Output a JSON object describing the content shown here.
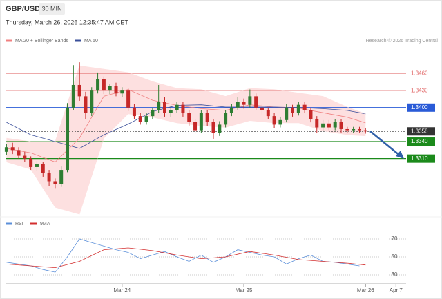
{
  "chart_data": {
    "type": "candlestick",
    "title": "GBP/USD",
    "interval": "30 MIN",
    "subtitle": "Thursday, March 26, 2026 12:35:47 AM CET",
    "credit": "Research © 2026 Trading Central",
    "up_color": "#2e7d32",
    "down_color": "#c62828",
    "xlim": [
      -0.5,
      71
    ],
    "xticks": [
      {
        "value": 19,
        "label": "Mar 24"
      },
      {
        "value": 39,
        "label": "Mar 25"
      },
      {
        "value": 59,
        "label": "Mar 26"
      },
      {
        "value": 64,
        "label": "Apr 7"
      }
    ],
    "ylim": [
      1.3206,
      1.3535
    ],
    "open": [
      1.3322,
      1.333,
      1.3325,
      1.3315,
      1.331,
      1.3295,
      1.33,
      1.3285,
      1.327,
      1.3265,
      1.329,
      1.34,
      1.344,
      1.342,
      1.339,
      1.343,
      1.345,
      1.343,
      1.3438,
      1.3425,
      1.343,
      1.34,
      1.3385,
      1.3375,
      1.3385,
      1.3395,
      1.341,
      1.339,
      1.3395,
      1.3405,
      1.339,
      1.3375,
      1.336,
      1.339,
      1.3375,
      1.3355,
      1.337,
      1.339,
      1.34,
      1.341,
      1.3405,
      1.342,
      1.34,
      1.3395,
      1.3385,
      1.337,
      1.3378,
      1.34,
      1.339,
      1.3405,
      1.3395,
      1.338,
      1.3365,
      1.3372,
      1.3365,
      1.3375,
      1.3362,
      1.336,
      1.3362,
      1.336
    ],
    "high": [
      1.3336,
      1.3338,
      1.333,
      1.3322,
      1.3314,
      1.3306,
      1.3304,
      1.329,
      1.3275,
      1.3296,
      1.3408,
      1.3475,
      1.348,
      1.3428,
      1.3436,
      1.3462,
      1.3455,
      1.3442,
      1.3444,
      1.3436,
      1.3434,
      1.3406,
      1.339,
      1.339,
      1.34,
      1.344,
      1.3418,
      1.3402,
      1.341,
      1.341,
      1.3396,
      1.338,
      1.3396,
      1.3395,
      1.338,
      1.3376,
      1.3396,
      1.3406,
      1.3418,
      1.3416,
      1.3432,
      1.3425,
      1.3406,
      1.34,
      1.339,
      1.3384,
      1.3406,
      1.3405,
      1.341,
      1.341,
      1.34,
      1.3385,
      1.3378,
      1.3378,
      1.338,
      1.338,
      1.3366,
      1.3366,
      1.3366,
      1.3364
    ],
    "low": [
      1.3316,
      1.3318,
      1.331,
      1.3304,
      1.329,
      1.3288,
      1.3278,
      1.3262,
      1.3258,
      1.326,
      1.3286,
      1.3395,
      1.3412,
      1.338,
      1.3385,
      1.3425,
      1.3424,
      1.3424,
      1.342,
      1.3418,
      1.3394,
      1.338,
      1.337,
      1.337,
      1.338,
      1.339,
      1.3384,
      1.3384,
      1.339,
      1.3384,
      1.3368,
      1.3354,
      1.3355,
      1.3368,
      1.3345,
      1.335,
      1.3365,
      1.3385,
      1.3395,
      1.3398,
      1.34,
      1.3395,
      1.3388,
      1.338,
      1.3364,
      1.3365,
      1.3374,
      1.3384,
      1.3386,
      1.339,
      1.3374,
      1.3355,
      1.3358,
      1.336,
      1.336,
      1.3356,
      1.3355,
      1.3355,
      1.3356,
      1.3354
    ],
    "close": [
      1.333,
      1.3325,
      1.3315,
      1.331,
      1.3295,
      1.33,
      1.3285,
      1.327,
      1.3265,
      1.329,
      1.34,
      1.344,
      1.342,
      1.339,
      1.343,
      1.345,
      1.343,
      1.3438,
      1.3425,
      1.343,
      1.34,
      1.3385,
      1.3375,
      1.3385,
      1.3395,
      1.341,
      1.339,
      1.3395,
      1.3405,
      1.339,
      1.3375,
      1.336,
      1.339,
      1.3375,
      1.3355,
      1.337,
      1.339,
      1.34,
      1.341,
      1.3405,
      1.342,
      1.34,
      1.3395,
      1.3385,
      1.337,
      1.3378,
      1.34,
      1.339,
      1.3405,
      1.3395,
      1.338,
      1.3365,
      1.3372,
      1.3365,
      1.3375,
      1.3362,
      1.336,
      1.3362,
      1.336,
      1.3358
    ],
    "overlays": {
      "x": [
        0,
        4,
        8,
        12,
        16,
        20,
        24,
        28,
        32,
        36,
        40,
        44,
        48,
        52,
        56,
        59
      ],
      "series": [
        {
          "name": "MA 20 + Bollinger Bands",
          "color": "#f08080",
          "band_color": "#fde0e0",
          "values": [
            1.3328,
            1.332,
            1.3304,
            1.3346,
            1.342,
            1.3432,
            1.3413,
            1.3404,
            1.3398,
            1.3395,
            1.3405,
            1.3401,
            1.3399,
            1.3391,
            1.3383,
            1.3373
          ],
          "upper": [
            1.3346,
            1.334,
            1.334,
            1.3474,
            1.3468,
            1.3462,
            1.3446,
            1.3434,
            1.3432,
            1.342,
            1.3434,
            1.3432,
            1.3426,
            1.342,
            1.3401,
            1.3389
          ],
          "lower": [
            1.3304,
            1.3291,
            1.3224,
            1.3212,
            1.3346,
            1.3389,
            1.3383,
            1.3373,
            1.3368,
            1.3365,
            1.3377,
            1.3373,
            1.3373,
            1.3359,
            1.3352,
            1.335
          ]
        },
        {
          "name": "MA 50",
          "color": "#3a4f9a",
          "values": [
            1.3374,
            1.3352,
            1.334,
            1.3328,
            1.3352,
            1.3371,
            1.3393,
            1.3404,
            1.3405,
            1.3401,
            1.3401,
            1.3401,
            1.34,
            1.3398,
            1.3395,
            1.3389
          ]
        }
      ]
    },
    "levels": [
      {
        "value": 1.346,
        "label": "1.3460",
        "color": "#e06060",
        "boxed": false,
        "dashed": false
      },
      {
        "value": 1.343,
        "label": "1.3430",
        "color": "#e06060",
        "boxed": false,
        "dashed": false
      },
      {
        "value": 1.34,
        "label": "1.3400",
        "color": "#2a5bd7",
        "boxed": true,
        "dashed": false
      },
      {
        "value": 1.3358,
        "label": "1.3358",
        "color": "#333333",
        "boxed": true,
        "dashed": true
      },
      {
        "value": 1.334,
        "label": "1.3340",
        "color": "#1b8a1b",
        "boxed": true,
        "dashed": false
      },
      {
        "value": 1.331,
        "label": "1.3310",
        "color": "#1b8a1b",
        "boxed": true,
        "dashed": false
      }
    ],
    "rsi": {
      "ylim": [
        20,
        80
      ],
      "yticks": [
        30,
        50,
        70
      ],
      "series": [
        {
          "name": "RSI",
          "color": "#5b8fd9",
          "x": [
            0,
            2,
            4,
            6,
            8,
            10,
            12,
            14,
            16,
            18,
            20,
            22,
            24,
            26,
            28,
            30,
            32,
            34,
            36,
            38,
            40,
            42,
            44,
            46,
            48,
            50,
            52,
            54,
            56,
            58
          ],
          "values": [
            44,
            42,
            40,
            36,
            33,
            50,
            70,
            66,
            62,
            58,
            55,
            48,
            52,
            56,
            50,
            45,
            52,
            44,
            50,
            58,
            55,
            52,
            50,
            42,
            48,
            52,
            45,
            44,
            42,
            40
          ]
        },
        {
          "name": "9MA",
          "color": "#d32f2f",
          "x": [
            0,
            4,
            8,
            12,
            16,
            20,
            24,
            28,
            32,
            36,
            40,
            44,
            48,
            52,
            56,
            59
          ],
          "values": [
            42,
            40,
            38,
            45,
            58,
            60,
            57,
            52,
            48,
            50,
            56,
            52,
            47,
            45,
            43,
            41
          ]
        }
      ]
    }
  }
}
